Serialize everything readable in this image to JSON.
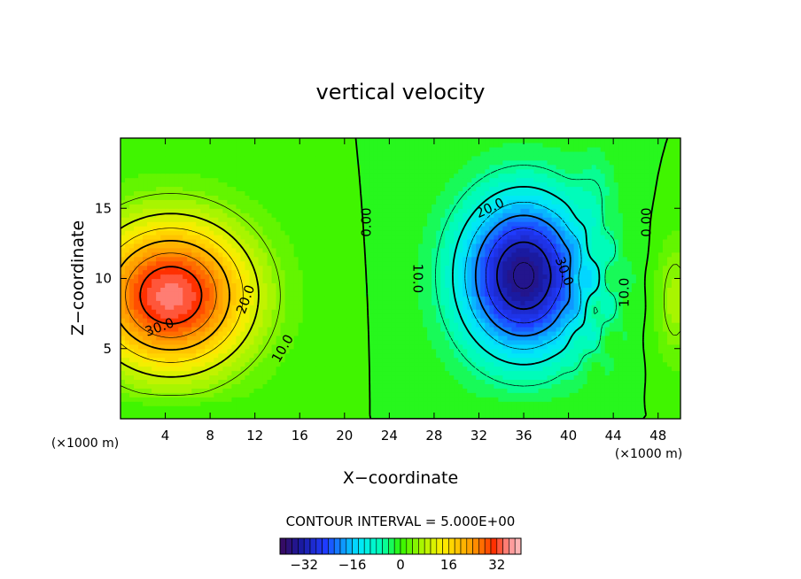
{
  "chart_data": {
    "type": "heatmap",
    "title": "vertical velocity",
    "xlabel": "X−coordinate",
    "ylabel": "Z−coordinate",
    "x_unit_left": "(×1000 m)",
    "x_unit_right": "(×1000 m)",
    "x_ticks": [
      4,
      8,
      12,
      16,
      20,
      24,
      28,
      32,
      36,
      40,
      44,
      48
    ],
    "y_ticks": [
      5,
      10,
      15
    ],
    "xlim": [
      0,
      50
    ],
    "ylim": [
      0,
      20
    ],
    "contour_interval_text": "CONTOUR INTERVAL = 5.000E+00",
    "contour_interval": 5,
    "contour_labels": [
      {
        "text": "30.0",
        "x": 3.5,
        "z": 6.5,
        "angle": -20
      },
      {
        "text": "20.0",
        "x": 11.2,
        "z": 8.5,
        "angle": -70
      },
      {
        "text": "10.0",
        "x": 14.5,
        "z": 5,
        "angle": -60
      },
      {
        "text": "0.00",
        "x": 22,
        "z": 14,
        "angle": -90
      },
      {
        "text": "10.0",
        "x": 26.5,
        "z": 10,
        "angle": 90
      },
      {
        "text": "20.0",
        "x": 33,
        "z": 15,
        "angle": -25
      },
      {
        "text": "30.0",
        "x": 39.6,
        "z": 10.5,
        "angle": 70
      },
      {
        "text": "10.0",
        "x": 45,
        "z": 9,
        "angle": -90
      },
      {
        "text": "0.00",
        "x": 47,
        "z": 14,
        "angle": -90
      }
    ],
    "field_extrema": {
      "max": 35,
      "min": -36
    },
    "colorbar": {
      "min": -40,
      "max": 40,
      "ticks": [
        -32,
        -16,
        0,
        16,
        32
      ],
      "tick_labels": [
        "−32",
        "−16",
        "0",
        "16",
        "32"
      ]
    },
    "colors": {
      "c_min": "#3a0a5c",
      "c_deep": "#1a1aa0",
      "c_blue": "#1f3bff",
      "c_cyan": "#00e5ff",
      "c_teal": "#00ffb0",
      "c_green": "#2ff500",
      "c_lime": "#a8f500",
      "c_yellow": "#ffee00",
      "c_orange": "#ff9a00",
      "c_red": "#ff3000",
      "c_pink": "#ff9090",
      "c_max": "#ffc0c0"
    }
  }
}
